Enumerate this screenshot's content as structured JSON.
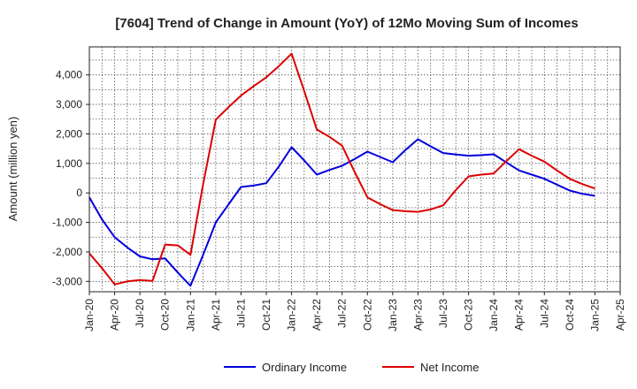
{
  "chart_data": {
    "type": "line",
    "title": "[7604]  Trend of Change in Amount (YoY) of 12Mo Moving Sum of Incomes",
    "xlabel": "",
    "ylabel": "Amount (million yen)",
    "x": [
      "Jan-20",
      "Apr-20",
      "Jul-20",
      "Oct-20",
      "Jan-21",
      "Apr-21",
      "Jul-21",
      "Oct-21",
      "Jan-22",
      "Apr-22",
      "Jul-22",
      "Oct-22",
      "Jan-23",
      "Apr-23",
      "Jul-23",
      "Oct-23",
      "Jan-24",
      "Apr-24",
      "Jul-24",
      "Oct-24",
      "Jan-25",
      "Apr-25"
    ],
    "ylim": [
      -3350,
      4950
    ],
    "yticks": [
      -3000,
      -2000,
      -1000,
      0,
      1000,
      2000,
      3000,
      4000
    ],
    "ytick_labels": [
      "-3,000",
      "-2,000",
      "-1,000",
      "0",
      "1,000",
      "2,000",
      "3,000",
      "4,000"
    ],
    "grid": true,
    "legend_position": "bottom",
    "series": [
      {
        "name": "Ordinary Income",
        "color": "#0000dd",
        "points": [
          [
            0,
            -150
          ],
          [
            1,
            -900
          ],
          [
            2,
            -1500
          ],
          [
            3,
            -1850
          ],
          [
            4,
            -2150
          ],
          [
            5,
            -2250
          ],
          [
            6,
            -2220
          ],
          [
            7,
            -2700
          ],
          [
            8,
            -3150
          ],
          [
            9,
            -2100
          ],
          [
            10,
            -1000
          ],
          [
            11,
            -400
          ],
          [
            12,
            200
          ],
          [
            13,
            250
          ],
          [
            14,
            330
          ],
          [
            15,
            900
          ],
          [
            16,
            1550
          ],
          [
            17,
            1100
          ],
          [
            18,
            620
          ],
          [
            19,
            780
          ],
          [
            20,
            920
          ],
          [
            21,
            1150
          ],
          [
            22,
            1400
          ],
          [
            23,
            1220
          ],
          [
            24,
            1040
          ],
          [
            25,
            1450
          ],
          [
            26,
            1820
          ],
          [
            27,
            1580
          ],
          [
            28,
            1350
          ],
          [
            29,
            1300
          ],
          [
            30,
            1260
          ],
          [
            31,
            1280
          ],
          [
            32,
            1310
          ],
          [
            33,
            1030
          ],
          [
            34,
            760
          ],
          [
            35,
            620
          ],
          [
            36,
            480
          ],
          [
            37,
            280
          ],
          [
            38,
            80
          ],
          [
            39,
            -30
          ],
          [
            40,
            -100
          ]
        ]
      },
      {
        "name": "Net Income",
        "color": "#dd0000",
        "points": [
          [
            0,
            -2050
          ],
          [
            1,
            -2550
          ],
          [
            2,
            -3100
          ],
          [
            3,
            -3000
          ],
          [
            4,
            -2950
          ],
          [
            5,
            -2980
          ],
          [
            6,
            -1750
          ],
          [
            7,
            -1780
          ],
          [
            8,
            -2100
          ],
          [
            9,
            300
          ],
          [
            10,
            2480
          ],
          [
            11,
            2900
          ],
          [
            12,
            3300
          ],
          [
            13,
            3620
          ],
          [
            14,
            3920
          ],
          [
            15,
            4300
          ],
          [
            16,
            4720
          ],
          [
            17,
            3450
          ],
          [
            18,
            2150
          ],
          [
            19,
            1900
          ],
          [
            20,
            1600
          ],
          [
            21,
            700
          ],
          [
            22,
            -150
          ],
          [
            23,
            -380
          ],
          [
            24,
            -580
          ],
          [
            25,
            -620
          ],
          [
            26,
            -640
          ],
          [
            27,
            -560
          ],
          [
            28,
            -420
          ],
          [
            29,
            100
          ],
          [
            30,
            560
          ],
          [
            31,
            620
          ],
          [
            32,
            660
          ],
          [
            33,
            1080
          ],
          [
            34,
            1480
          ],
          [
            35,
            1260
          ],
          [
            36,
            1060
          ],
          [
            37,
            760
          ],
          [
            38,
            480
          ],
          [
            39,
            300
          ],
          [
            40,
            150
          ]
        ]
      }
    ]
  }
}
